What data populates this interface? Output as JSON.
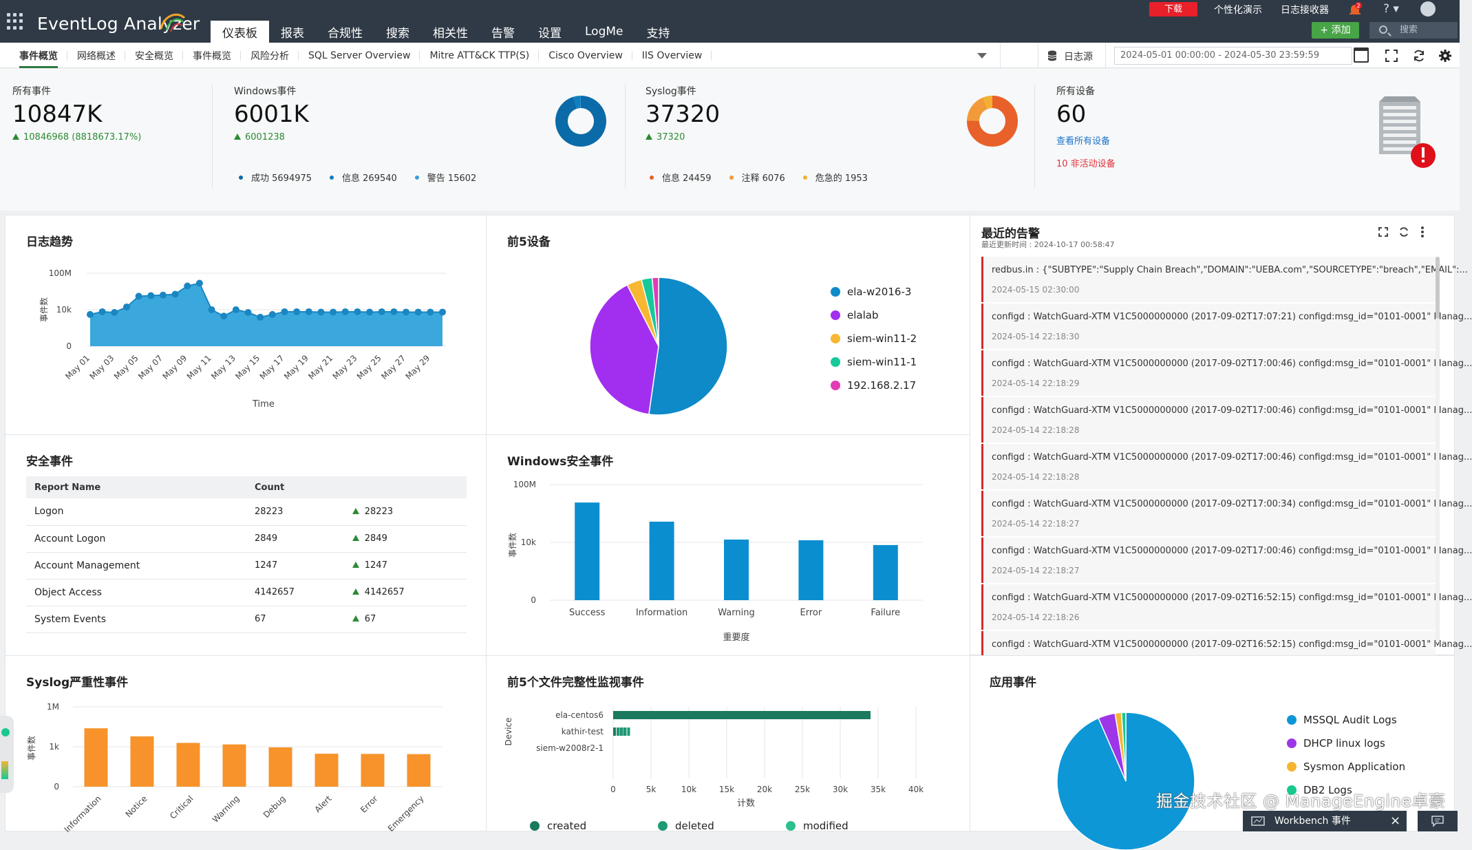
{
  "app": {
    "title": "EventLog Analyzer"
  },
  "main_nav": [
    "仪表板",
    "报表",
    "合规性",
    "搜索",
    "相关性",
    "告警",
    "设置",
    "LogMe",
    "支持"
  ],
  "main_nav_active": 0,
  "top_right": {
    "download": "下载",
    "personalize": "个性化演示",
    "log_receiver": "日志接收器",
    "badge": "2",
    "help": "?",
    "add": "+ 添加",
    "search_placeholder": "搜索"
  },
  "sub_tabs": [
    "事件概览",
    "网络概述",
    "安全概览",
    "事件概览",
    "风险分析",
    "SQL Server Overview",
    "Mitre ATT&CK TTP(S)",
    "Cisco Overview",
    "IIS Overview"
  ],
  "sub_tabs_active": 0,
  "log_source": "日志源",
  "date_range": "2024-05-01 00:00:00 - 2024-05-30 23:59:59",
  "summary": {
    "all": {
      "label": "所有事件",
      "value": "10847K",
      "delta": "10846968 (8818673.17%)"
    },
    "windows": {
      "label": "Windows事件",
      "value": "6001K",
      "delta": "6001238",
      "legend": [
        {
          "label": "成功 5694975",
          "color": "#0b6ba8",
          "v": 5694975
        },
        {
          "label": "信息 269540",
          "color": "#0f7fc0",
          "v": 269540
        },
        {
          "label": "警告 15602",
          "color": "#3aa0d8",
          "v": 15602
        }
      ]
    },
    "syslog": {
      "label": "Syslog事件",
      "value": "37320",
      "delta": "37320",
      "legend": [
        {
          "label": "信息 24459",
          "color": "#e8602a",
          "v": 24459
        },
        {
          "label": "注释 6076",
          "color": "#f29a3a",
          "v": 6076
        },
        {
          "label": "危急的 1953",
          "color": "#f5b034",
          "v": 1953
        }
      ]
    },
    "devices": {
      "label": "所有设备",
      "value": "60",
      "view_all": "查看所有设备",
      "inactive": "10 非活动设备"
    }
  },
  "widgets": {
    "log_trend": "日志趋势",
    "top5_devices": "前5设备",
    "recent_alerts": "最近的告警",
    "recent_alerts_updated": "最近更新时间 : 2024-10-17 00:58:47",
    "security_events": "安全事件",
    "windows_security": "Windows安全事件",
    "syslog_severity": "Syslog严重性事件",
    "fim_top5": "前5个文件完整性监视事件",
    "app_events": "应用事件"
  },
  "security_table": {
    "headers": [
      "Report Name",
      "Count"
    ],
    "rows": [
      {
        "name": "Logon",
        "count": "28223",
        "delta": "28223"
      },
      {
        "name": "Account Logon",
        "count": "2849",
        "delta": "2849"
      },
      {
        "name": "Account Management",
        "count": "1247",
        "delta": "1247"
      },
      {
        "name": "Object Access",
        "count": "4142657",
        "delta": "4142657"
      },
      {
        "name": "System Events",
        "count": "67",
        "delta": "67"
      }
    ]
  },
  "alerts": [
    {
      "text": "redbus.in : {\"SUBTYPE\":\"Supply Chain Breach\",\"DOMAIN\":\"UEBA.com\",\"SOURCETYPE\":\"breach\",\"EMAIL\":...",
      "time": "2024-05-15 02:30:00"
    },
    {
      "text": "configd : WatchGuard-XTM V1C5000000000 (2017-09-02T17:07:21) configd:msg_id=\"0101-0001\" Manag...",
      "time": "2024-05-14 22:18:30"
    },
    {
      "text": "configd : WatchGuard-XTM V1C5000000000 (2017-09-02T17:00:46) configd:msg_id=\"0101-0001\" Manag...",
      "time": "2024-05-14 22:18:29"
    },
    {
      "text": "configd : WatchGuard-XTM V1C5000000000 (2017-09-02T17:00:46) configd:msg_id=\"0101-0001\" Manag...",
      "time": "2024-05-14 22:18:28"
    },
    {
      "text": "configd : WatchGuard-XTM V1C5000000000 (2017-09-02T17:00:46) configd:msg_id=\"0101-0001\" Manag...",
      "time": "2024-05-14 22:18:28"
    },
    {
      "text": "configd : WatchGuard-XTM V1C5000000000 (2017-09-02T17:00:34) configd:msg_id=\"0101-0001\" Manag...",
      "time": "2024-05-14 22:18:27"
    },
    {
      "text": "configd : WatchGuard-XTM V1C5000000000 (2017-09-02T17:00:46) configd:msg_id=\"0101-0001\" Manag...",
      "time": "2024-05-14 22:18:27"
    },
    {
      "text": "configd : WatchGuard-XTM V1C5000000000 (2017-09-02T16:52:15) configd:msg_id=\"0101-0001\" Manag...",
      "time": "2024-05-14 22:18:26"
    },
    {
      "text": "configd : WatchGuard-XTM V1C5000000000 (2017-09-02T16:52:15) configd:msg_id=\"0101-0001\" Manag...",
      "time": ""
    }
  ],
  "chart_data": [
    {
      "id": "log_trend",
      "type": "area",
      "title": "日志趋势",
      "xlabel": "Time",
      "ylabel": "事件数",
      "yscale": "log",
      "yticks": [
        "0",
        "10k",
        "100M"
      ],
      "ylim": [
        0,
        100000000
      ],
      "xticks": [
        "May 01",
        "May 03",
        "May 05",
        "May 07",
        "May 09",
        "May 11",
        "May 13",
        "May 15",
        "May 17",
        "May 19",
        "May 21",
        "May 23",
        "May 25",
        "May 27",
        "May 29"
      ],
      "x": [
        "May 01",
        "May 02",
        "May 03",
        "May 04",
        "May 05",
        "May 06",
        "May 07",
        "May 08",
        "May 09",
        "May 10",
        "May 11",
        "May 12",
        "May 13",
        "May 14",
        "May 15",
        "May 16",
        "May 17",
        "May 18",
        "May 19",
        "May 20",
        "May 21",
        "May 22",
        "May 23",
        "May 24",
        "May 25",
        "May 26",
        "May 27",
        "May 28",
        "May 29",
        "May 30"
      ],
      "values": [
        3000,
        6000,
        5000,
        20000,
        300000,
        350000,
        400000,
        500000,
        4000000,
        8000000,
        10000,
        2000,
        10000,
        5000,
        1500,
        3000,
        6000,
        6000,
        6000,
        5500,
        5500,
        6000,
        6000,
        5500,
        6000,
        6000,
        5500,
        5500,
        5500,
        5500
      ],
      "color": "#3aa8dc"
    },
    {
      "id": "top5_devices",
      "type": "pie",
      "title": "前5设备",
      "labels": [
        "ela-w2016-3",
        "elalab",
        "siem-win11-2",
        "siem-win11-1",
        "192.168.2.17"
      ],
      "values": [
        52,
        40,
        3.5,
        2.5,
        1.5
      ],
      "colors": [
        "#0f8ac8",
        "#a22ef0",
        "#f7b733",
        "#16c99a",
        "#e23bb5"
      ]
    },
    {
      "id": "windows_security",
      "type": "bar",
      "title": "Windows安全事件",
      "xlabel": "重要度",
      "ylabel": "事件数",
      "yscale": "log",
      "yticks": [
        "0",
        "10k",
        "100M"
      ],
      "categories": [
        "Success",
        "Information",
        "Warning",
        "Error",
        "Failure"
      ],
      "values": [
        5694975,
        269540,
        15602,
        14000,
        6500
      ],
      "color": "#0b8ed0"
    },
    {
      "id": "syslog_severity",
      "type": "bar",
      "title": "Syslog严重性事件",
      "ylabel": "事件数",
      "yscale": "log",
      "yticks": [
        "0",
        "1k",
        "1M"
      ],
      "categories": [
        "Information",
        "Notice",
        "Critical",
        "Warning",
        "Debug",
        "Alert",
        "Error",
        "Emergency"
      ],
      "values": [
        24459,
        6076,
        1953,
        1500,
        900,
        300,
        290,
        280
      ],
      "color": "#f7932a"
    },
    {
      "id": "fim_top5",
      "type": "bar",
      "orientation": "horizontal",
      "title": "前5个文件完整性监视事件",
      "xlabel": "计数",
      "ylabel": "Device",
      "categories": [
        "ela-centos6",
        "kathir-test",
        "siem-w2008r2-1"
      ],
      "xticks": [
        "0",
        "5k",
        "10k",
        "15k",
        "20k",
        "25k",
        "30k",
        "35k",
        "40k"
      ],
      "xlim": [
        0,
        40000
      ],
      "series": [
        {
          "name": "created",
          "values": [
            34000,
            500,
            0
          ],
          "color": "#1b7a5e"
        },
        {
          "name": "deleted",
          "values": [
            0,
            2000,
            0
          ],
          "color": "#1f9a76"
        },
        {
          "name": "modified",
          "values": [
            0,
            0,
            0
          ],
          "color": "#2cc08e"
        }
      ]
    },
    {
      "id": "app_events",
      "type": "pie",
      "title": "应用事件",
      "labels": [
        "MSSQL Audit Logs",
        "DHCP linux logs",
        "Sysmon Application",
        "DB2 Logs"
      ],
      "values": [
        93,
        4,
        1.5,
        1
      ],
      "colors": [
        "#0e97d6",
        "#9d35e8",
        "#f5b533",
        "#17c98f"
      ]
    }
  ],
  "watermark": "掘金技术社区 @ ManageEngine卓豪",
  "workbench": "Workbench 事件"
}
